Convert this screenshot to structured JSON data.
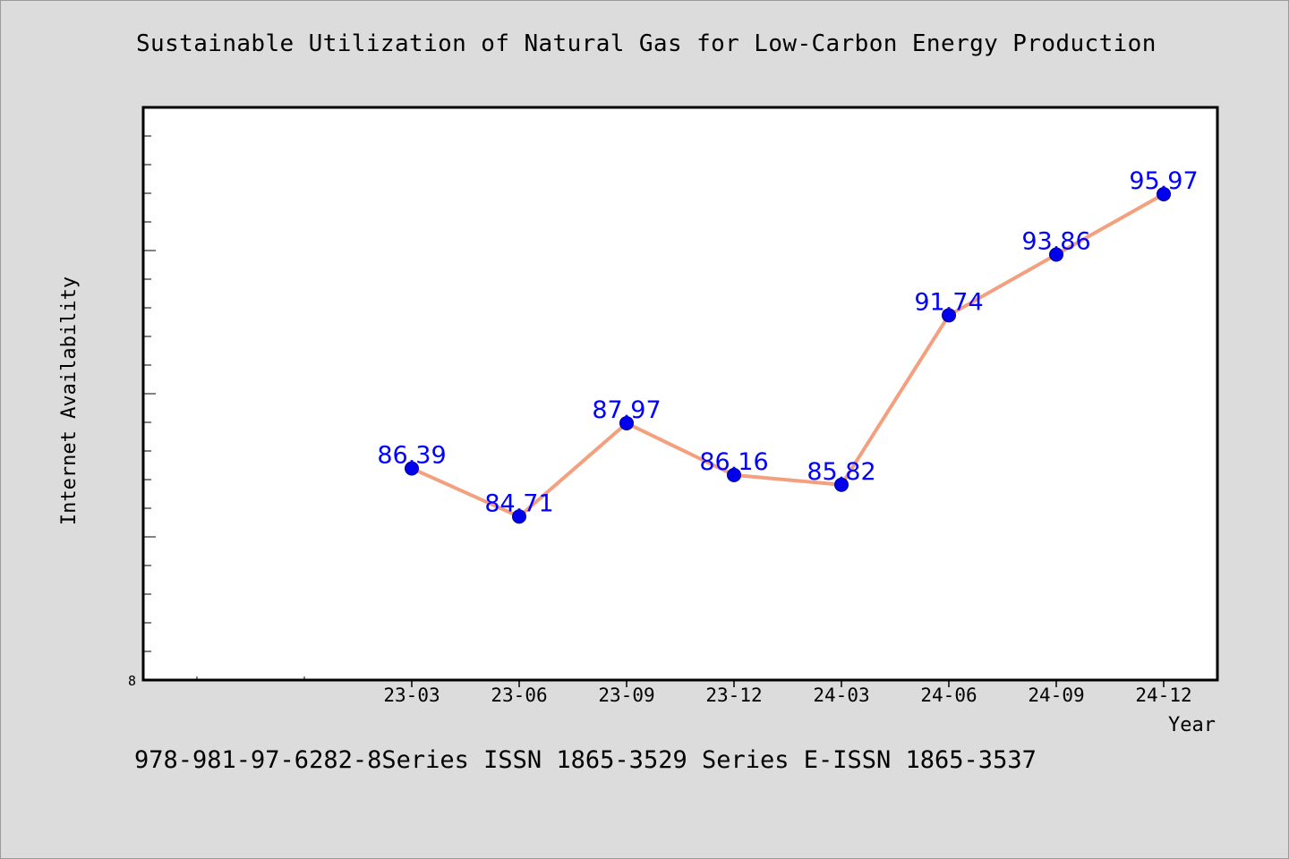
{
  "title": "Sustainable Utilization of Natural Gas for Low-Carbon Energy Production",
  "footer": "978-981-97-6282-8Series ISSN 1865-3529 Series E-ISSN 1865-3537",
  "colors": {
    "background": "#dcdcdc",
    "plot_background": "#ffffff",
    "line": "#f4a07e",
    "marker": "#0000ee",
    "data_label": "#0000ff"
  },
  "chart_data": {
    "type": "line",
    "title": "Sustainable Utilization of Natural Gas for Low-Carbon Energy Production",
    "xlabel": "Year",
    "ylabel": "Internet Availability",
    "categories": [
      "23-03",
      "23-06",
      "23-09",
      "23-12",
      "24-03",
      "24-06",
      "24-09",
      "24-12"
    ],
    "series": [
      {
        "values": [
          86.39,
          84.71,
          87.97,
          86.16,
          85.82,
          91.74,
          93.86,
          95.97
        ]
      }
    ],
    "data_labels": [
      "86.39",
      "84.71",
      "87.97",
      "86.16",
      "85.82",
      "91.74",
      "93.86",
      "95.97"
    ],
    "y_tick_labels": [
      "8"
    ],
    "ylim": [
      79,
      99
    ],
    "grid": false,
    "legend": "none"
  }
}
